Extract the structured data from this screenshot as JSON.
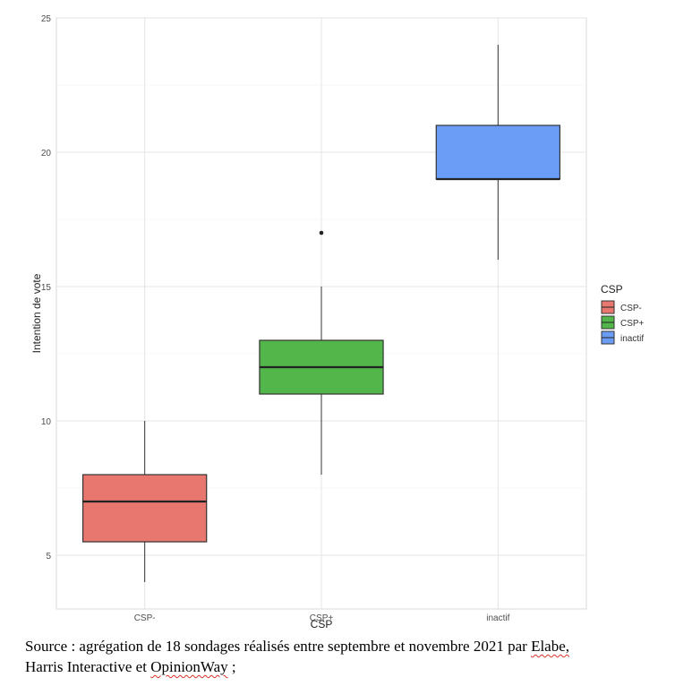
{
  "chart_data": {
    "type": "boxplot",
    "xlabel": "CSP",
    "ylabel": "Intention de vote",
    "ylim": [
      3,
      25
    ],
    "yticks": [
      5,
      10,
      15,
      20,
      25
    ],
    "grid": true,
    "legend": {
      "title": "CSP",
      "position": "right"
    },
    "categories": [
      "CSP-",
      "CSP+",
      "inactif"
    ],
    "series": [
      {
        "name": "CSP-",
        "color": "#e8786f",
        "whisker_low": 4,
        "q1": 5.5,
        "median": 7,
        "q3": 8,
        "whisker_high": 10,
        "outliers": []
      },
      {
        "name": "CSP+",
        "color": "#53b64a",
        "whisker_low": 8,
        "q1": 11,
        "median": 12,
        "q3": 13,
        "whisker_high": 15,
        "outliers": [
          17
        ]
      },
      {
        "name": "inactif",
        "color": "#6c9df6",
        "whisker_low": 16,
        "q1": 19,
        "median": 19,
        "q3": 21,
        "whisker_high": 24,
        "outliers": []
      }
    ]
  },
  "caption": {
    "line_1": "Source : agrégation de 18 sondages réalisés entre septembre et novembre 2021 par",
    "elabe": "Elabe,",
    "line_2_start": "Harris Interactive et",
    "opinionway": "OpinionWay",
    "line_2_end": " ;"
  }
}
